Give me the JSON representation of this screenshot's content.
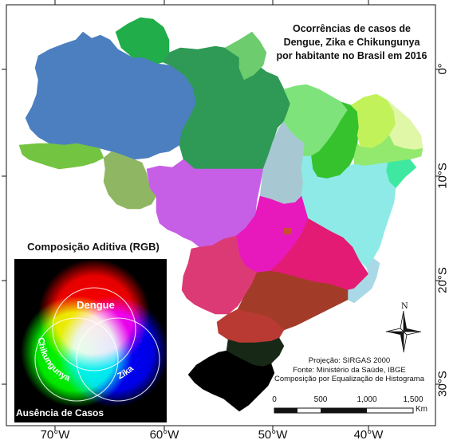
{
  "title": {
    "line1": "Ocorrências de casos de",
    "line2": "Dengue, Zika e Chikungunya",
    "line3": "por habitante no Brasil em 2016"
  },
  "axes": {
    "longitude_labels": [
      "70°W",
      "60°W",
      "50°W",
      "40°W"
    ],
    "latitude_labels": [
      "0°",
      "10°S",
      "20°S",
      "30°S"
    ]
  },
  "legend": {
    "title": "Composição Aditiva (RGB)",
    "circle_labels": {
      "red": "Dengue",
      "green": "Chikungunya",
      "blue": "Zika"
    },
    "absence_label": "Ausência de Casos"
  },
  "credits": {
    "projection": "Projeção: SIRGAS 2000",
    "source": "Fonte: Ministério da Saúde, IBGE",
    "composition": "Composição por Equalização de Histograma"
  },
  "scale_bar": {
    "labels": [
      "0",
      "500",
      "1,000",
      "1,500"
    ],
    "unit": "Km"
  },
  "north_arrow": {
    "letter": "N"
  },
  "colors": {
    "amazonas": "#4c7fc0",
    "para": "#2e9a55",
    "roraima": "#20ad4a",
    "amapa": "#6ccc6e",
    "acre": "#73c440",
    "rondonia": "#8fb663",
    "mato_grosso": "#c75ee6",
    "tocantins": "#a7c8d3",
    "bahia": "#8eeae6",
    "goias": "#e719bd",
    "minas_gerais": "#e31b74",
    "mato_grosso_sul": "#dc3a75",
    "sao_paulo": "#a23c28",
    "rio_de_janeiro": "#df5b8e",
    "espirito_santo": "#a9d9e6",
    "parana": "#b83a32",
    "santa_catarina": "#172817",
    "rio_grande_sul": "#000000",
    "maranhao": "#7ee37a",
    "piaui": "#35c22d",
    "ceara": "#c2f25a",
    "rgn_pb": "#e0f7a8",
    "pernambuco": "#93e96d",
    "alagoas_se": "#3ee8a1"
  }
}
